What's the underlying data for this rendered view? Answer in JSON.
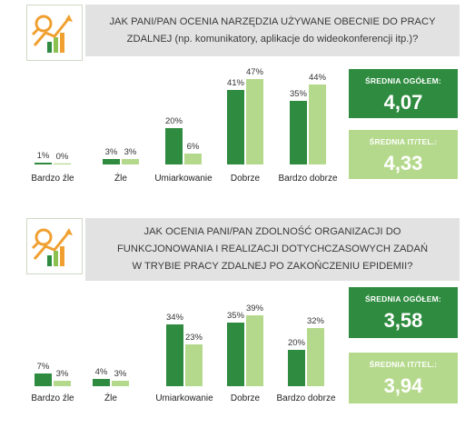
{
  "colors": {
    "dark_green": "#2e8b3f",
    "light_green": "#b5d98c",
    "question_bg": "#e2e2e2",
    "icon": "chart-magnifier-icon"
  },
  "chart_data": [
    {
      "type": "bar",
      "title": "JAK PANI/PAN OCENIA NARZĘDZIA UŻYWANE OBECNIE DO PRACY ZDALNEJ (np. komunikatory, aplikacje do wideokonferencji itp.)?",
      "title_lines": [
        "JAK PANI/PAN OCENIA NARZĘDZIA UŻYWANE OBECNIE DO PRACY",
        "ZDALNEJ (np. komunikatory, aplikacje do wideokonferencji itp.)?"
      ],
      "categories": [
        "Bardzo źle",
        "Źle",
        "Umiarkowanie",
        "Dobrze",
        "Bardzo dobrze"
      ],
      "series": [
        {
          "values": [
            1,
            3,
            20,
            41,
            35
          ],
          "labels": [
            "1%",
            "3%",
            "20%",
            "41%",
            "35%"
          ],
          "color": "#2e8b3f"
        },
        {
          "values": [
            0,
            3,
            6,
            47,
            44
          ],
          "labels": [
            "0%",
            "3%",
            "6%",
            "47%",
            "44%"
          ],
          "color": "#b5d98c"
        }
      ],
      "ylim": [
        0,
        50
      ],
      "averages": [
        {
          "label": "ŚREDNIA OGÓŁEM:",
          "value": "4,07",
          "color": "#2e8b3f"
        },
        {
          "label": "ŚREDNIA IT/TEL.:",
          "value": "4,33",
          "color": "#b5d98c"
        }
      ]
    },
    {
      "type": "bar",
      "title": "JAK OCENIA PANI/PAN ZDOLNOŚĆ ORGANIZACJI DO FUNKCJONOWANIA I REALIZACJI DOTYCHCZASOWYCH ZADAŃ W TRYBIE PRACY ZDALNEJ PO ZAKOŃCZENIU EPIDEMII?",
      "title_lines": [
        "JAK OCENIA PANI/PAN ZDOLNOŚĆ ORGANIZACJI DO",
        "FUNKCJONOWANIA I REALIZACJI DOTYCHCZASOWYCH ZADAŃ",
        "W TRYBIE PRACY ZDALNEJ PO ZAKOŃCZENIU EPIDEMII?"
      ],
      "categories": [
        "Bardzo źle",
        "Źle",
        "Umiarkowanie",
        "Dobrze",
        "Bardzo dobrze"
      ],
      "series": [
        {
          "values": [
            7,
            4,
            34,
            35,
            20
          ],
          "labels": [
            "7%",
            "4%",
            "34%",
            "35%",
            "20%"
          ],
          "color": "#2e8b3f"
        },
        {
          "values": [
            3,
            3,
            23,
            39,
            32
          ],
          "labels": [
            "3%",
            "3%",
            "23%",
            "39%",
            "32%"
          ],
          "color": "#b5d98c"
        }
      ],
      "ylim": [
        0,
        50
      ],
      "averages": [
        {
          "label": "ŚREDNIA OGÓŁEM:",
          "value": "3,58",
          "color": "#2e8b3f"
        },
        {
          "label": "ŚREDNIA IT/TEL.:",
          "value": "3,94",
          "color": "#b5d98c"
        }
      ]
    }
  ]
}
